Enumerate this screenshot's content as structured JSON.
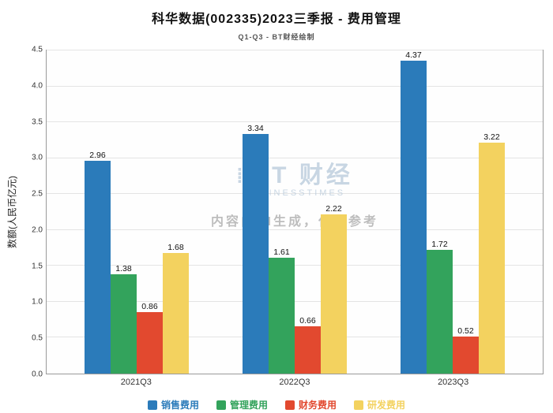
{
  "header": {
    "title": "科华数据(002335)2023三季报 - 费用管理",
    "subtitle": "Q1-Q3 - BT财经绘制"
  },
  "watermark": {
    "logo_icon": "⁞:",
    "logo_text": "BT 财经",
    "logo_sub": "BUSINESSTIMES",
    "disclaimer": "内容由AI生成，仅供参考"
  },
  "chart_data": {
    "type": "bar",
    "title": "科华数据(002335)2023三季报 - 费用管理",
    "subtitle": "Q1-Q3 - BT财经绘制",
    "xlabel": "",
    "ylabel": "数额(人民币亿元)",
    "categories": [
      "2021Q3",
      "2022Q3",
      "2023Q3"
    ],
    "series": [
      {
        "name": "销售费用",
        "color": "#2b7bba",
        "values": [
          2.96,
          3.34,
          4.37
        ]
      },
      {
        "name": "管理费用",
        "color": "#33a35c",
        "values": [
          1.38,
          1.61,
          1.72
        ]
      },
      {
        "name": "财务费用",
        "color": "#e2492f",
        "values": [
          0.86,
          0.66,
          0.52
        ]
      },
      {
        "name": "研发费用",
        "color": "#f3d25f",
        "values": [
          1.68,
          2.22,
          3.22
        ]
      }
    ],
    "ylim": [
      0,
      4.5
    ],
    "ytick_step": 0.5,
    "grid": true,
    "legend_position": "bottom"
  }
}
